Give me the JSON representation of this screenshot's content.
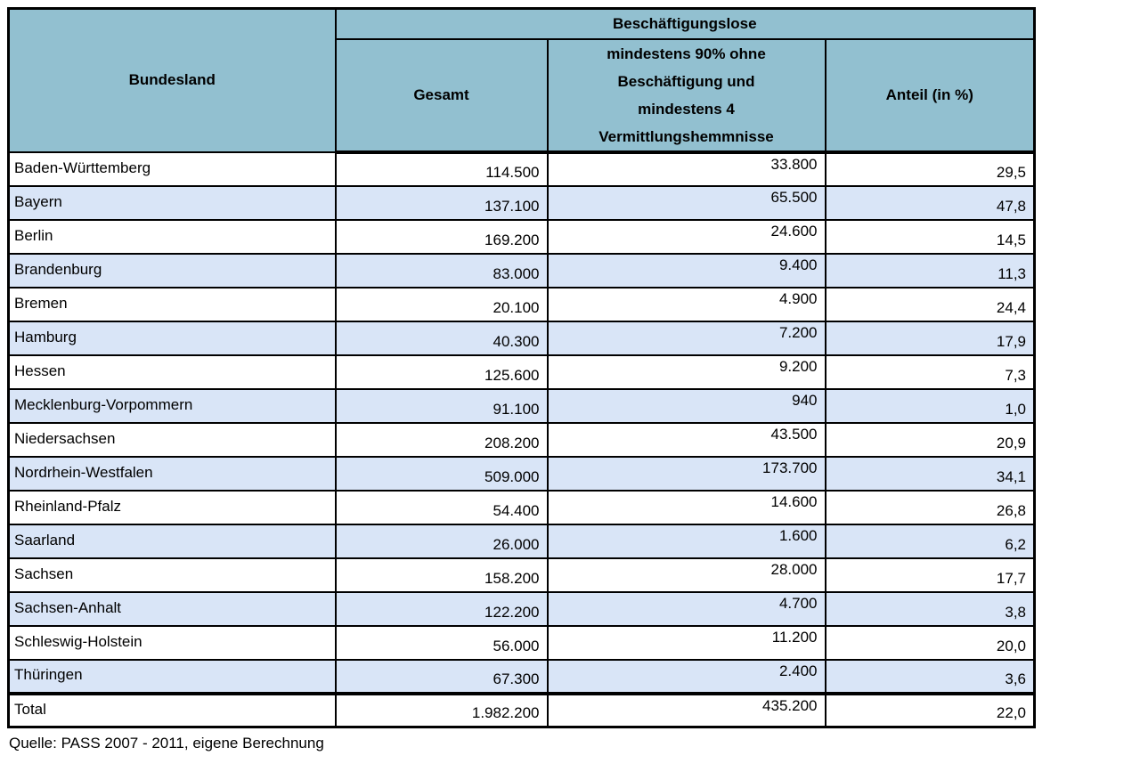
{
  "colors": {
    "header_bg": "#92C0D0",
    "alt_row_bg": "#D9E5F7",
    "row_bg": "#FFFFFF",
    "border": "#000000",
    "text": "#000000"
  },
  "table": {
    "group_header": "Beschäftigungslose",
    "columns": {
      "bundesland": "Bundesland",
      "gesamt": "Gesamt",
      "min90": "mindestens 90% ohne\nBeschäftigung und\nmindestens 4\nVermittlungshemmnisse",
      "anteil": "Anteil (in %)"
    },
    "rows": [
      {
        "bundesland": "Baden-Württemberg",
        "gesamt": "114.500",
        "min90": "33.800",
        "anteil": "29,5"
      },
      {
        "bundesland": "Bayern",
        "gesamt": "137.100",
        "min90": "65.500",
        "anteil": "47,8"
      },
      {
        "bundesland": "Berlin",
        "gesamt": "169.200",
        "min90": "24.600",
        "anteil": "14,5"
      },
      {
        "bundesland": "Brandenburg",
        "gesamt": "83.000",
        "min90": "9.400",
        "anteil": "11,3"
      },
      {
        "bundesland": "Bremen",
        "gesamt": "20.100",
        "min90": "4.900",
        "anteil": "24,4"
      },
      {
        "bundesland": "Hamburg",
        "gesamt": "40.300",
        "min90": "7.200",
        "anteil": "17,9"
      },
      {
        "bundesland": "Hessen",
        "gesamt": "125.600",
        "min90": "9.200",
        "anteil": "7,3"
      },
      {
        "bundesland": "Mecklenburg-Vorpommern",
        "gesamt": "91.100",
        "min90": "940",
        "anteil": "1,0"
      },
      {
        "bundesland": "Niedersachsen",
        "gesamt": "208.200",
        "min90": "43.500",
        "anteil": "20,9"
      },
      {
        "bundesland": "Nordrhein-Westfalen",
        "gesamt": "509.000",
        "min90": "173.700",
        "anteil": "34,1"
      },
      {
        "bundesland": "Rheinland-Pfalz",
        "gesamt": "54.400",
        "min90": "14.600",
        "anteil": "26,8"
      },
      {
        "bundesland": "Saarland",
        "gesamt": "26.000",
        "min90": "1.600",
        "anteil": "6,2"
      },
      {
        "bundesland": "Sachsen",
        "gesamt": "158.200",
        "min90": "28.000",
        "anteil": "17,7"
      },
      {
        "bundesland": "Sachsen-Anhalt",
        "gesamt": "122.200",
        "min90": "4.700",
        "anteil": "3,8"
      },
      {
        "bundesland": "Schleswig-Holstein",
        "gesamt": "56.000",
        "min90": "11.200",
        "anteil": "20,0"
      },
      {
        "bundesland": "Thüringen",
        "gesamt": "67.300",
        "min90": "2.400",
        "anteil": "3,6"
      }
    ],
    "total_row": {
      "bundesland": "Total",
      "gesamt": "1.982.200",
      "min90": "435.200",
      "anteil": "22,0"
    }
  },
  "source": "Quelle: PASS 2007 - 2011, eigene Berechnung",
  "chart_data": {
    "type": "table",
    "title": "Beschäftigungslose nach Bundesland",
    "columns": [
      "Bundesland",
      "Beschäftigungslose Gesamt",
      "Beschäftigungslose: mindestens 90% ohne Beschäftigung und mindestens 4 Vermittlungshemmnisse",
      "Anteil (in %)"
    ],
    "rows": [
      [
        "Baden-Württemberg",
        114500,
        33800,
        29.5
      ],
      [
        "Bayern",
        137100,
        65500,
        47.8
      ],
      [
        "Berlin",
        169200,
        24600,
        14.5
      ],
      [
        "Brandenburg",
        83000,
        9400,
        11.3
      ],
      [
        "Bremen",
        20100,
        4900,
        24.4
      ],
      [
        "Hamburg",
        40300,
        7200,
        17.9
      ],
      [
        "Hessen",
        125600,
        9200,
        7.3
      ],
      [
        "Mecklenburg-Vorpommern",
        91100,
        940,
        1.0
      ],
      [
        "Niedersachsen",
        208200,
        43500,
        20.9
      ],
      [
        "Nordrhein-Westfalen",
        509000,
        173700,
        34.1
      ],
      [
        "Rheinland-Pfalz",
        54400,
        14600,
        26.8
      ],
      [
        "Saarland",
        26000,
        1600,
        6.2
      ],
      [
        "Sachsen",
        158200,
        28000,
        17.7
      ],
      [
        "Sachsen-Anhalt",
        122200,
        4700,
        3.8
      ],
      [
        "Schleswig-Holstein",
        56000,
        11200,
        20.0
      ],
      [
        "Thüringen",
        67300,
        2400,
        3.6
      ]
    ],
    "total_row": [
      "Total",
      1982200,
      435200,
      22.0
    ],
    "source": "Quelle: PASS 2007 - 2011, eigene Berechnung"
  }
}
